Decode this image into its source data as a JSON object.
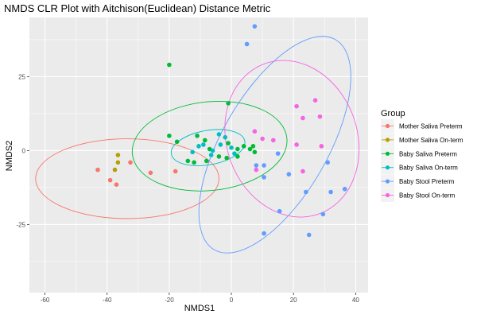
{
  "chart_data": {
    "type": "scatter",
    "title": "NMDS CLR Plot with Aitchison(Euclidean) Distance Metric",
    "xlabel": "NMDS1",
    "ylabel": "NMDS2",
    "xlim": [
      -65,
      44
    ],
    "ylim": [
      -48,
      45
    ],
    "x_ticks": [
      -60,
      -40,
      -20,
      0,
      20,
      40
    ],
    "y_ticks": [
      -25,
      0,
      25
    ],
    "grid": true,
    "legend": {
      "title": "Group",
      "position": "right"
    },
    "series": [
      {
        "name": "Mother Saliva Preterm",
        "color": "#F8766D",
        "points": [
          [
            -43,
            -6.5
          ],
          [
            -39,
            -10
          ],
          [
            -37,
            -11.5
          ],
          [
            -32.5,
            -4
          ],
          [
            -26,
            -7.5
          ],
          [
            -18,
            -7
          ]
        ],
        "ellipse": {
          "cx": -33.5,
          "cy": -9.5,
          "rx": 29.5,
          "ry": 13.5,
          "angle": 0
        }
      },
      {
        "name": "Mother Saliva On-term",
        "color": "#B79F00",
        "points": [
          [
            -36.5,
            -1.5
          ],
          [
            -36.5,
            -4
          ],
          [
            -37.5,
            -6.5
          ]
        ],
        "ellipse": null
      },
      {
        "name": "Baby Saliva Preterm",
        "color": "#00BA38",
        "points": [
          [
            -20,
            29
          ],
          [
            -20,
            5
          ],
          [
            -17.5,
            3
          ],
          [
            -11,
            5
          ],
          [
            -8.5,
            3.5
          ],
          [
            -14,
            -3.5
          ],
          [
            -12,
            -4
          ],
          [
            -8,
            -3.5
          ],
          [
            -7,
            0.5
          ],
          [
            -4,
            -2
          ],
          [
            -1,
            2.5
          ],
          [
            -1.5,
            -2.5
          ],
          [
            -1,
            16
          ],
          [
            2,
            -2
          ],
          [
            2,
            0.5
          ],
          [
            4,
            1.5
          ],
          [
            6,
            0.5
          ],
          [
            7,
            1.5
          ],
          [
            7.5,
            -0.5
          ]
        ],
        "ellipse": {
          "cx": -7,
          "cy": 1.5,
          "rx": 25,
          "ry": 15,
          "angle": 6
        }
      },
      {
        "name": "Baby Saliva On-term",
        "color": "#00BFC4",
        "points": [
          [
            -12.5,
            -0.5
          ],
          [
            -10.5,
            1.5
          ],
          [
            -9,
            2
          ],
          [
            -6.5,
            -1.5
          ],
          [
            -6,
            0
          ],
          [
            -4,
            5.5
          ],
          [
            -3.5,
            2
          ],
          [
            -2,
            4.5
          ],
          [
            1,
            -1
          ],
          [
            0,
            1
          ]
        ],
        "ellipse": {
          "cx": -7.5,
          "cy": 1,
          "rx": 12,
          "ry": 5.8,
          "angle": 10
        }
      },
      {
        "name": "Baby Stool Preterm",
        "color": "#619CFF",
        "points": [
          [
            7.5,
            42
          ],
          [
            5,
            36
          ],
          [
            15,
            -1
          ],
          [
            18.5,
            -8
          ],
          [
            10.5,
            -9
          ],
          [
            8,
            -5
          ],
          [
            10.5,
            -5
          ],
          [
            24,
            -14
          ],
          [
            29.5,
            -21.5
          ],
          [
            32,
            -14
          ],
          [
            36.5,
            -13
          ],
          [
            31,
            -4
          ],
          [
            15.5,
            -20.5
          ],
          [
            10.5,
            -28
          ],
          [
            25,
            -28.5
          ]
        ],
        "ellipse": {
          "cx": 14,
          "cy": 2,
          "rx": 17,
          "ry": 41,
          "angle": -30
        }
      },
      {
        "name": "Baby Stool On-term",
        "color": "#F564E3",
        "points": [
          [
            7.5,
            6.5
          ],
          [
            10,
            4
          ],
          [
            13.5,
            3.5
          ],
          [
            21,
            15
          ],
          [
            23,
            11
          ],
          [
            27,
            17
          ],
          [
            28.5,
            11.5
          ],
          [
            29,
            1.5
          ],
          [
            21,
            2
          ],
          [
            23,
            -7
          ],
          [
            8,
            -6.5
          ]
        ],
        "ellipse": {
          "cx": 19.5,
          "cy": 4,
          "rx": 21,
          "ry": 27,
          "angle": 20
        }
      }
    ]
  }
}
